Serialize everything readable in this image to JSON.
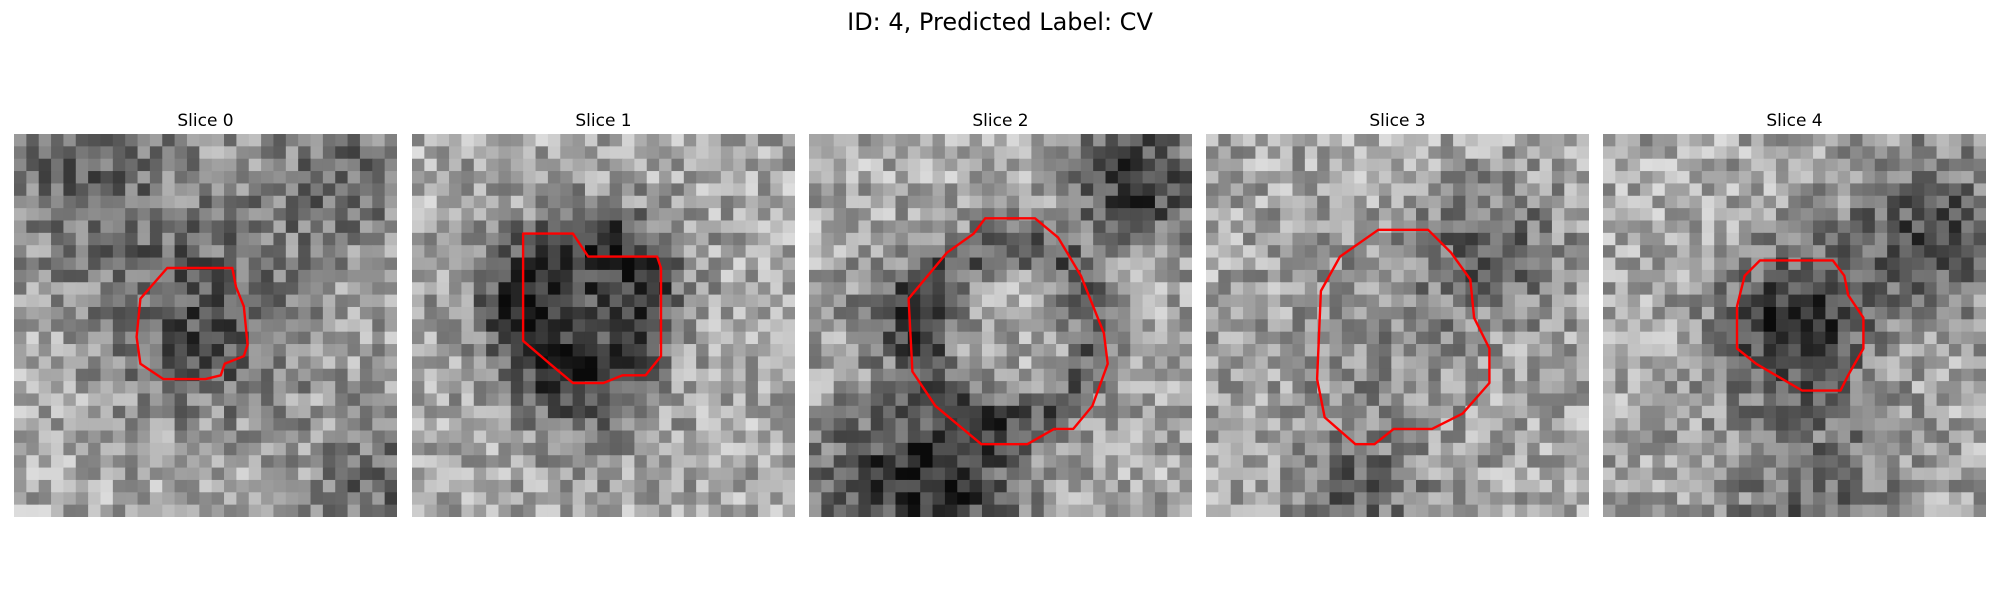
{
  "figure": {
    "title": "ID: 4, Predicted Label: CV"
  },
  "colors": {
    "contour": "#ff0000",
    "background": "#ffffff"
  },
  "panels": [
    {
      "title": "Slice 0"
    },
    {
      "title": "Slice 1"
    },
    {
      "title": "Slice 2"
    },
    {
      "title": "Slice 3"
    },
    {
      "title": "Slice 4"
    }
  ]
}
